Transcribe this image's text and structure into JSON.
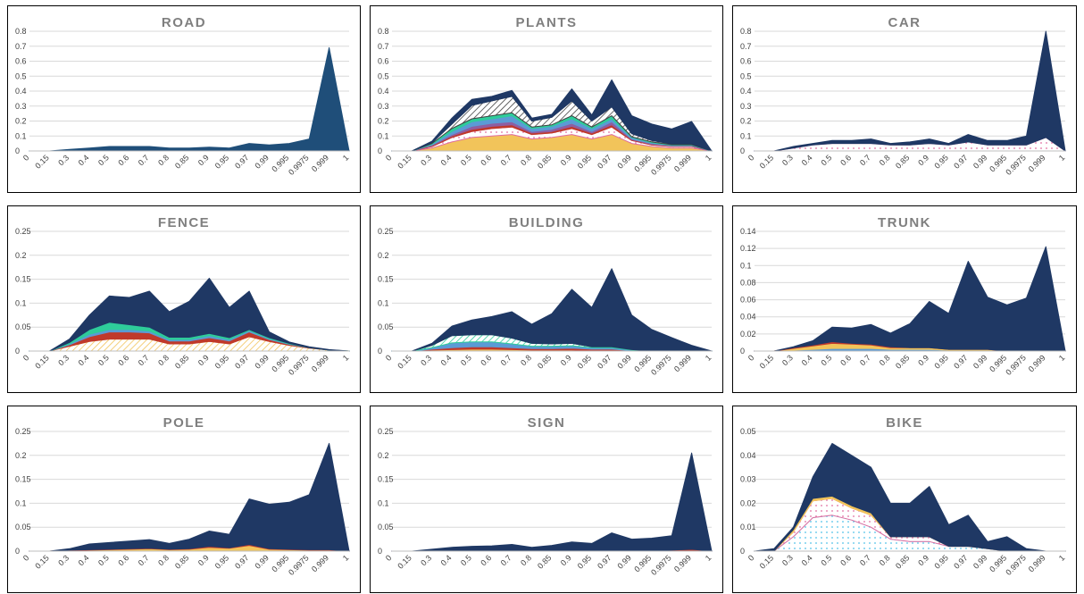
{
  "chart_data": [
    {
      "name": "road",
      "type": "area",
      "title": "ROAD",
      "categories": [
        "0",
        "0.15",
        "0.3",
        "0.4",
        "0.5",
        "0.6",
        "0.7",
        "0.8",
        "0.85",
        "0.9",
        "0.95",
        "0.97",
        "0.99",
        "0.995",
        "0.9975",
        "0.999",
        "1"
      ],
      "ylim": [
        0,
        0.8
      ],
      "yticks": [
        "0",
        "0.1",
        "0.2",
        "0.3",
        "0.4",
        "0.5",
        "0.6",
        "0.7",
        "0.8"
      ],
      "grid": true,
      "legend": "none",
      "series": [
        {
          "color": "#1f4e79",
          "fill": "solid",
          "values": [
            0,
            0,
            0.01,
            0.02,
            0.03,
            0.03,
            0.03,
            0.02,
            0.02,
            0.025,
            0.02,
            0.05,
            0.04,
            0.05,
            0.08,
            0.69,
            0
          ]
        }
      ]
    },
    {
      "name": "plants",
      "type": "area",
      "title": "PLANTS",
      "categories": [
        "0",
        "0.15",
        "0.3",
        "0.4",
        "0.5",
        "0.6",
        "0.7",
        "0.8",
        "0.85",
        "0.9",
        "0.95",
        "0.97",
        "0.99",
        "0.995",
        "0.9975",
        "0.999",
        "1"
      ],
      "ylim": [
        0,
        0.8
      ],
      "yticks": [
        "0",
        "0.1",
        "0.2",
        "0.3",
        "0.4",
        "0.5",
        "0.6",
        "0.7",
        "0.8"
      ],
      "grid": true,
      "legend": "none",
      "series": [
        {
          "color": "#f2c45a",
          "fill": "solid",
          "values": [
            0,
            0,
            0.02,
            0.06,
            0.09,
            0.1,
            0.11,
            0.08,
            0.09,
            0.11,
            0.08,
            0.11,
            0.05,
            0.03,
            0.02,
            0.02,
            0
          ]
        },
        {
          "color": "#e06c9f",
          "fill": "dots",
          "values": [
            0,
            0,
            0.01,
            0.03,
            0.04,
            0.05,
            0.05,
            0.03,
            0.03,
            0.04,
            0.03,
            0.05,
            0.02,
            0.01,
            0.01,
            0.01,
            0
          ]
        },
        {
          "color": "#c0392b",
          "fill": "solid",
          "values": [
            0,
            0,
            0.005,
            0.01,
            0.015,
            0.015,
            0.015,
            0.01,
            0.01,
            0.015,
            0.01,
            0.015,
            0.005,
            0.005,
            0.003,
            0.003,
            0
          ]
        },
        {
          "color": "#8e5ea2",
          "fill": "solid",
          "values": [
            0,
            0,
            0.005,
            0.01,
            0.02,
            0.02,
            0.02,
            0.01,
            0.015,
            0.02,
            0.01,
            0.02,
            0.005,
            0.005,
            0.003,
            0.003,
            0
          ]
        },
        {
          "color": "#5b9bd5",
          "fill": "solid",
          "values": [
            0,
            0,
            0.005,
            0.02,
            0.03,
            0.03,
            0.04,
            0.02,
            0.02,
            0.03,
            0.02,
            0.02,
            0.01,
            0.005,
            0.003,
            0.003,
            0
          ]
        },
        {
          "color": "#2ecc9a",
          "fill": "solid",
          "values": [
            0,
            0,
            0.005,
            0.02,
            0.02,
            0.02,
            0.02,
            0.01,
            0.01,
            0.02,
            0.01,
            0.02,
            0.005,
            0.005,
            0.003,
            0.003,
            0
          ]
        },
        {
          "color": "#404040",
          "fill": "hatch",
          "values": [
            0,
            0,
            0.005,
            0.03,
            0.09,
            0.1,
            0.11,
            0.04,
            0.05,
            0.1,
            0.04,
            0.06,
            0.02,
            0.01,
            0.005,
            0.005,
            0
          ]
        },
        {
          "color": "#1f3864",
          "fill": "solid",
          "values": [
            0,
            0,
            0.01,
            0.04,
            0.04,
            0.03,
            0.04,
            0.02,
            0.02,
            0.08,
            0.04,
            0.18,
            0.12,
            0.11,
            0.1,
            0.15,
            0
          ]
        }
      ]
    },
    {
      "name": "car",
      "type": "area",
      "title": "CAR",
      "categories": [
        "0",
        "0.15",
        "0.3",
        "0.4",
        "0.5",
        "0.6",
        "0.7",
        "0.8",
        "0.85",
        "0.9",
        "0.95",
        "0.97",
        "0.99",
        "0.995",
        "0.9975",
        "0.999",
        "1"
      ],
      "ylim": [
        0,
        0.8
      ],
      "yticks": [
        "0",
        "0.1",
        "0.2",
        "0.3",
        "0.4",
        "0.5",
        "0.6",
        "0.7",
        "0.8"
      ],
      "grid": true,
      "legend": "none",
      "series": [
        {
          "color": "#e06c9f",
          "fill": "dots",
          "values": [
            0,
            0,
            0.02,
            0.04,
            0.05,
            0.05,
            0.05,
            0.04,
            0.04,
            0.05,
            0.04,
            0.06,
            0.04,
            0.04,
            0.04,
            0.09,
            0
          ]
        },
        {
          "color": "#1f3864",
          "fill": "solid",
          "values": [
            0,
            0,
            0.01,
            0.01,
            0.02,
            0.02,
            0.03,
            0.01,
            0.02,
            0.03,
            0.01,
            0.05,
            0.03,
            0.03,
            0.06,
            0.71,
            0
          ]
        }
      ]
    },
    {
      "name": "fence",
      "type": "area",
      "title": "FENCE",
      "categories": [
        "0",
        "0.15",
        "0.3",
        "0.4",
        "0.5",
        "0.6",
        "0.7",
        "0.8",
        "0.85",
        "0.9",
        "0.95",
        "0.97",
        "0.99",
        "0.995",
        "0.9975",
        "0.999",
        "1"
      ],
      "ylim": [
        0,
        0.25
      ],
      "yticks": [
        "0",
        "0.05",
        "0.1",
        "0.15",
        "0.2",
        "0.25"
      ],
      "grid": true,
      "legend": "none",
      "series": [
        {
          "color": "#f2c45a",
          "fill": "hatch",
          "values": [
            0,
            0,
            0.01,
            0.02,
            0.025,
            0.025,
            0.025,
            0.015,
            0.015,
            0.02,
            0.015,
            0.03,
            0.02,
            0.012,
            0.006,
            0.002,
            0
          ]
        },
        {
          "color": "#c0392b",
          "fill": "solid",
          "values": [
            0,
            0,
            0.003,
            0.01,
            0.015,
            0.015,
            0.013,
            0.006,
            0.006,
            0.008,
            0.006,
            0.01,
            0.004,
            0.002,
            0.001,
            0,
            0
          ]
        },
        {
          "color": "#5b9bd5",
          "fill": "solid",
          "values": [
            0,
            0,
            0.002,
            0.005,
            0.005,
            0.005,
            0.004,
            0.003,
            0.003,
            0.004,
            0.003,
            0.003,
            0.002,
            0.001,
            0,
            0,
            0
          ]
        },
        {
          "color": "#2ecc9a",
          "fill": "solid",
          "values": [
            0,
            0,
            0.003,
            0.01,
            0.015,
            0.01,
            0.008,
            0.005,
            0.005,
            0.005,
            0.004,
            0.002,
            0.002,
            0.001,
            0,
            0,
            0
          ]
        },
        {
          "color": "#1f3864",
          "fill": "solid",
          "values": [
            0,
            0,
            0.007,
            0.03,
            0.055,
            0.057,
            0.075,
            0.053,
            0.075,
            0.115,
            0.063,
            0.08,
            0.012,
            0.003,
            0.002,
            0.001,
            0
          ]
        }
      ]
    },
    {
      "name": "building",
      "type": "area",
      "title": "BUILDING",
      "categories": [
        "0",
        "0.15",
        "0.3",
        "0.4",
        "0.5",
        "0.6",
        "0.7",
        "0.8",
        "0.85",
        "0.9",
        "0.95",
        "0.97",
        "0.99",
        "0.995",
        "0.9975",
        "0.999",
        "1"
      ],
      "ylim": [
        0,
        0.25
      ],
      "yticks": [
        "0",
        "0.05",
        "0.1",
        "0.15",
        "0.2",
        "0.25"
      ],
      "grid": true,
      "legend": "none",
      "series": [
        {
          "color": "#f2c45a",
          "fill": "solid",
          "values": [
            0,
            0,
            0.002,
            0.003,
            0.004,
            0.004,
            0.003,
            0.002,
            0.002,
            0.002,
            0.001,
            0.001,
            0,
            0,
            0,
            0,
            0
          ]
        },
        {
          "color": "#c0392b",
          "fill": "solid",
          "values": [
            0,
            0,
            0.002,
            0.004,
            0.005,
            0.005,
            0.004,
            0.003,
            0.003,
            0.004,
            0.003,
            0.003,
            0.001,
            0,
            0,
            0,
            0
          ]
        },
        {
          "color": "#5b9bd5",
          "fill": "solid",
          "values": [
            0,
            0,
            0.003,
            0.01,
            0.01,
            0.01,
            0.008,
            0.005,
            0.005,
            0.005,
            0.003,
            0.003,
            0.001,
            0,
            0,
            0,
            0
          ]
        },
        {
          "color": "#2ecc9a",
          "fill": "hatch",
          "values": [
            0,
            0,
            0.005,
            0.015,
            0.015,
            0.015,
            0.012,
            0.006,
            0.005,
            0.005,
            0.002,
            0.002,
            0.001,
            0,
            0,
            0,
            0
          ]
        },
        {
          "color": "#1f3864",
          "fill": "solid",
          "values": [
            0,
            0,
            0.004,
            0.02,
            0.031,
            0.038,
            0.055,
            0.04,
            0.063,
            0.113,
            0.082,
            0.163,
            0.072,
            0.045,
            0.028,
            0.012,
            0
          ]
        }
      ]
    },
    {
      "name": "trunk",
      "type": "area",
      "title": "TRUNK",
      "categories": [
        "0",
        "0.15",
        "0.3",
        "0.4",
        "0.5",
        "0.6",
        "0.7",
        "0.8",
        "0.85",
        "0.9",
        "0.95",
        "0.97",
        "0.99",
        "0.995",
        "0.9975",
        "0.999",
        "1"
      ],
      "ylim": [
        0,
        0.14
      ],
      "yticks": [
        "0",
        "0.02",
        "0.04",
        "0.06",
        "0.08",
        "0.1",
        "0.12",
        "0.14"
      ],
      "grid": true,
      "legend": "none",
      "series": [
        {
          "color": "#5b9bd5",
          "fill": "solid",
          "values": [
            0,
            0,
            0.001,
            0.002,
            0.003,
            0.003,
            0.003,
            0.002,
            0.002,
            0.002,
            0.001,
            0.001,
            0.001,
            0,
            0,
            0,
            0
          ]
        },
        {
          "color": "#f2c45a",
          "fill": "solid",
          "values": [
            0,
            0,
            0.002,
            0.004,
            0.006,
            0.005,
            0.004,
            0.002,
            0.002,
            0.002,
            0.001,
            0.001,
            0.001,
            0,
            0,
            0,
            0
          ]
        },
        {
          "color": "#c0392b",
          "fill": "solid",
          "values": [
            0,
            0,
            0.001,
            0.001,
            0.002,
            0.001,
            0.001,
            0.001,
            0,
            0,
            0,
            0,
            0,
            0,
            0,
            0,
            0
          ]
        },
        {
          "color": "#1f3864",
          "fill": "solid",
          "values": [
            0,
            0,
            0.001,
            0.005,
            0.017,
            0.018,
            0.023,
            0.016,
            0.028,
            0.054,
            0.042,
            0.103,
            0.061,
            0.054,
            0.062,
            0.122,
            0
          ]
        }
      ]
    },
    {
      "name": "pole",
      "type": "area",
      "title": "POLE",
      "categories": [
        "0",
        "0.15",
        "0.3",
        "0.4",
        "0.5",
        "0.6",
        "0.7",
        "0.8",
        "0.85",
        "0.9",
        "0.95",
        "0.97",
        "0.99",
        "0.995",
        "0.9975",
        "0.999",
        "1"
      ],
      "ylim": [
        0,
        0.25
      ],
      "yticks": [
        "0",
        "0.05",
        "0.1",
        "0.15",
        "0.2",
        "0.25"
      ],
      "grid": true,
      "legend": "none",
      "series": [
        {
          "color": "#f2c45a",
          "fill": "solid",
          "values": [
            0,
            0,
            0.001,
            0.002,
            0.003,
            0.004,
            0.005,
            0.003,
            0.004,
            0.008,
            0.006,
            0.012,
            0.004,
            0.003,
            0.002,
            0.002,
            0
          ]
        },
        {
          "color": "#c0392b",
          "fill": "solid",
          "values": [
            0,
            0,
            0.001,
            0.001,
            0.001,
            0.001,
            0.001,
            0.001,
            0.001,
            0.002,
            0.001,
            0.002,
            0.001,
            0.001,
            0.001,
            0.001,
            0
          ]
        },
        {
          "color": "#1f3864",
          "fill": "solid",
          "values": [
            0,
            0,
            0.003,
            0.012,
            0.014,
            0.016,
            0.018,
            0.012,
            0.02,
            0.032,
            0.028,
            0.095,
            0.093,
            0.098,
            0.115,
            0.222,
            0
          ]
        }
      ]
    },
    {
      "name": "sign",
      "type": "area",
      "title": "SIGN",
      "categories": [
        "0",
        "0.15",
        "0.3",
        "0.4",
        "0.5",
        "0.6",
        "0.7",
        "0.8",
        "0.85",
        "0.9",
        "0.95",
        "0.97",
        "0.99",
        "0.995",
        "0.9975",
        "0.999",
        "1"
      ],
      "ylim": [
        0,
        0.25
      ],
      "yticks": [
        "0",
        "0.05",
        "0.1",
        "0.15",
        "0.2",
        "0.25"
      ],
      "grid": true,
      "legend": "none",
      "series": [
        {
          "color": "#c0392b",
          "fill": "solid",
          "values": [
            0,
            0,
            0,
            0,
            0.001,
            0.001,
            0.001,
            0.001,
            0.001,
            0.001,
            0.001,
            0.001,
            0.001,
            0.001,
            0.002,
            0.004,
            0
          ]
        },
        {
          "color": "#1f3864",
          "fill": "solid",
          "values": [
            0,
            0,
            0.004,
            0.008,
            0.009,
            0.01,
            0.013,
            0.007,
            0.011,
            0.018,
            0.015,
            0.037,
            0.024,
            0.026,
            0.03,
            0.201,
            0
          ]
        }
      ]
    },
    {
      "name": "bike",
      "type": "area",
      "title": "BIKE",
      "categories": [
        "0",
        "0.15",
        "0.3",
        "0.4",
        "0.5",
        "0.6",
        "0.7",
        "0.8",
        "0.85",
        "0.9",
        "0.95",
        "0.97",
        "0.99",
        "0.995",
        "0.9975",
        "0.999",
        "1"
      ],
      "ylim": [
        0,
        0.05
      ],
      "yticks": [
        "0",
        "0.01",
        "0.02",
        "0.03",
        "0.04",
        "0.05"
      ],
      "grid": true,
      "legend": "none",
      "series": [
        {
          "color": "#4fc1e9",
          "fill": "dots",
          "values": [
            0,
            0,
            0.006,
            0.014,
            0.015,
            0.013,
            0.01,
            0.005,
            0.004,
            0.004,
            0.002,
            0.002,
            0.001,
            0,
            0,
            0,
            0
          ]
        },
        {
          "color": "#e06c9f",
          "fill": "dots",
          "values": [
            0,
            0,
            0.002,
            0.007,
            0.007,
            0.005,
            0.005,
            0.001,
            0.002,
            0.002,
            0,
            0,
            0,
            0,
            0,
            0,
            0
          ]
        },
        {
          "color": "#f2c45a",
          "fill": "solid",
          "values": [
            0,
            0,
            0.001,
            0.001,
            0.001,
            0.001,
            0.001,
            0,
            0,
            0,
            0,
            0,
            0,
            0,
            0,
            0,
            0
          ]
        },
        {
          "color": "#1f3864",
          "fill": "solid",
          "values": [
            0,
            0.001,
            0.001,
            0.009,
            0.022,
            0.021,
            0.019,
            0.014,
            0.014,
            0.021,
            0.009,
            0.013,
            0.003,
            0.006,
            0.001,
            0,
            0
          ]
        }
      ]
    }
  ]
}
